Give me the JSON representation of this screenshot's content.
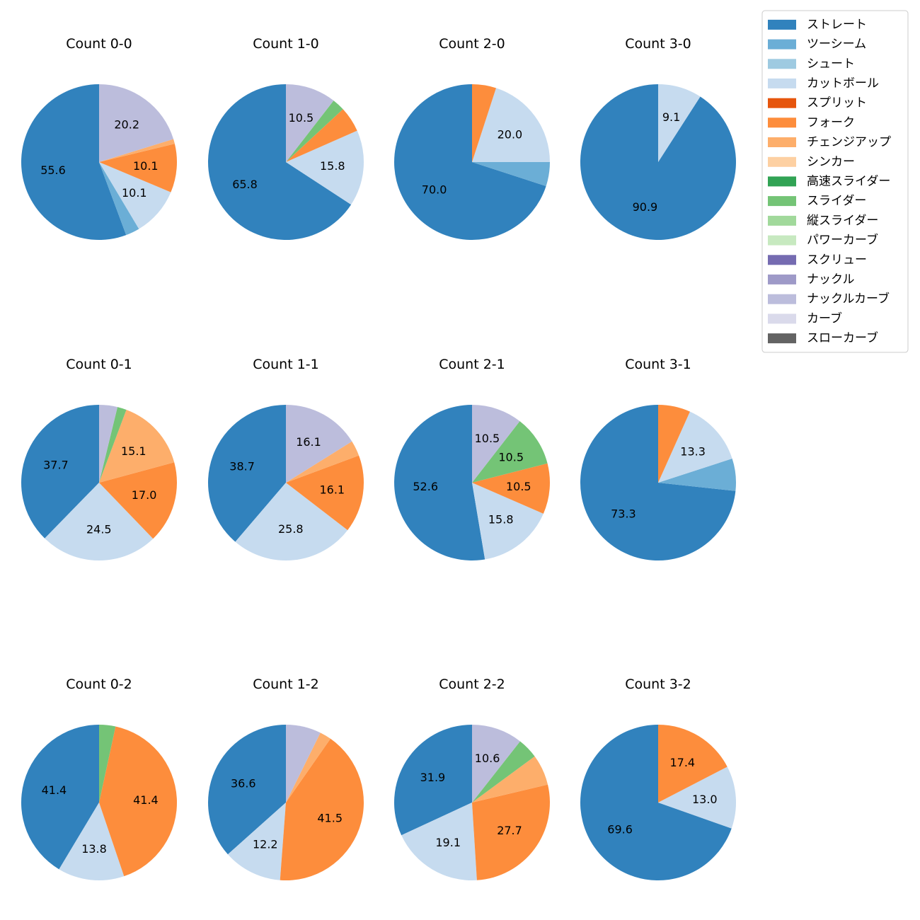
{
  "chart_data": {
    "type": "pie",
    "legend": {
      "placement": "top-right",
      "entries": [
        {
          "name": "ストレート",
          "color": "#3182bd"
        },
        {
          "name": "ツーシーム",
          "color": "#6baed6"
        },
        {
          "name": "シュート",
          "color": "#9ecae1"
        },
        {
          "name": "カットボール",
          "color": "#c6dbef"
        },
        {
          "name": "スプリット",
          "color": "#e6550d"
        },
        {
          "name": "フォーク",
          "color": "#fd8d3c"
        },
        {
          "name": "チェンジアップ",
          "color": "#fdae6b"
        },
        {
          "name": "シンカー",
          "color": "#fdd0a2"
        },
        {
          "name": "高速スライダー",
          "color": "#31a354"
        },
        {
          "name": "スライダー",
          "color": "#74c476"
        },
        {
          "name": "縦スライダー",
          "color": "#a1d99b"
        },
        {
          "name": "パワーカーブ",
          "color": "#c7e9c0"
        },
        {
          "name": "スクリュー",
          "color": "#756bb1"
        },
        {
          "name": "ナックル",
          "color": "#9e9ac8"
        },
        {
          "name": "ナックルカーブ",
          "color": "#bcbddc"
        },
        {
          "name": "カーブ",
          "color": "#dadaeb"
        },
        {
          "name": "スローカーブ",
          "color": "#636363"
        }
      ]
    },
    "pies": [
      {
        "title": "Count 0-0",
        "slices": [
          {
            "pitch": "ストレート",
            "value": 55.6,
            "label": "55.6"
          },
          {
            "pitch": "ツーシーム",
            "value": 2.9,
            "label": ""
          },
          {
            "pitch": "カットボール",
            "value": 10.1,
            "label": "10.1"
          },
          {
            "pitch": "フォーク",
            "value": 10.1,
            "label": "10.1"
          },
          {
            "pitch": "チェンジアップ",
            "value": 1.0,
            "label": ""
          },
          {
            "pitch": "ナックルカーブ",
            "value": 20.2,
            "label": "20.2"
          }
        ]
      },
      {
        "title": "Count 1-0",
        "slices": [
          {
            "pitch": "ストレート",
            "value": 65.8,
            "label": "65.8"
          },
          {
            "pitch": "カットボール",
            "value": 15.8,
            "label": "15.8"
          },
          {
            "pitch": "フォーク",
            "value": 5.3,
            "label": ""
          },
          {
            "pitch": "スライダー",
            "value": 2.6,
            "label": ""
          },
          {
            "pitch": "ナックルカーブ",
            "value": 10.5,
            "label": "10.5"
          }
        ]
      },
      {
        "title": "Count 2-0",
        "slices": [
          {
            "pitch": "ストレート",
            "value": 70.0,
            "label": "70.0"
          },
          {
            "pitch": "ツーシーム",
            "value": 5.0,
            "label": ""
          },
          {
            "pitch": "カットボール",
            "value": 20.0,
            "label": "20.0"
          },
          {
            "pitch": "フォーク",
            "value": 5.0,
            "label": ""
          }
        ]
      },
      {
        "title": "Count 3-0",
        "slices": [
          {
            "pitch": "ストレート",
            "value": 90.9,
            "label": "90.9"
          },
          {
            "pitch": "カットボール",
            "value": 9.1,
            "label": "9.1"
          }
        ]
      },
      {
        "title": "Count 0-1",
        "slices": [
          {
            "pitch": "ストレート",
            "value": 37.7,
            "label": "37.7"
          },
          {
            "pitch": "カットボール",
            "value": 24.5,
            "label": "24.5"
          },
          {
            "pitch": "フォーク",
            "value": 17.0,
            "label": "17.0"
          },
          {
            "pitch": "チェンジアップ",
            "value": 15.1,
            "label": "15.1"
          },
          {
            "pitch": "スライダー",
            "value": 1.9,
            "label": ""
          },
          {
            "pitch": "ナックルカーブ",
            "value": 3.8,
            "label": ""
          }
        ]
      },
      {
        "title": "Count 1-1",
        "slices": [
          {
            "pitch": "ストレート",
            "value": 38.7,
            "label": "38.7"
          },
          {
            "pitch": "カットボール",
            "value": 25.8,
            "label": "25.8"
          },
          {
            "pitch": "フォーク",
            "value": 16.1,
            "label": "16.1"
          },
          {
            "pitch": "チェンジアップ",
            "value": 3.2,
            "label": ""
          },
          {
            "pitch": "ナックルカーブ",
            "value": 16.1,
            "label": "16.1"
          }
        ]
      },
      {
        "title": "Count 2-1",
        "slices": [
          {
            "pitch": "ストレート",
            "value": 52.6,
            "label": "52.6"
          },
          {
            "pitch": "カットボール",
            "value": 15.8,
            "label": "15.8"
          },
          {
            "pitch": "フォーク",
            "value": 10.5,
            "label": "10.5"
          },
          {
            "pitch": "スライダー",
            "value": 10.5,
            "label": "10.5"
          },
          {
            "pitch": "ナックルカーブ",
            "value": 10.5,
            "label": "10.5"
          }
        ]
      },
      {
        "title": "Count 3-1",
        "slices": [
          {
            "pitch": "ストレート",
            "value": 73.3,
            "label": "73.3"
          },
          {
            "pitch": "ツーシーム",
            "value": 6.7,
            "label": ""
          },
          {
            "pitch": "カットボール",
            "value": 13.3,
            "label": "13.3"
          },
          {
            "pitch": "フォーク",
            "value": 6.7,
            "label": ""
          }
        ]
      },
      {
        "title": "Count 0-2",
        "slices": [
          {
            "pitch": "ストレート",
            "value": 41.4,
            "label": "41.4"
          },
          {
            "pitch": "カットボール",
            "value": 13.8,
            "label": "13.8"
          },
          {
            "pitch": "フォーク",
            "value": 41.4,
            "label": "41.4"
          },
          {
            "pitch": "スライダー",
            "value": 3.4,
            "label": ""
          }
        ]
      },
      {
        "title": "Count 1-2",
        "slices": [
          {
            "pitch": "ストレート",
            "value": 36.6,
            "label": "36.6"
          },
          {
            "pitch": "カットボール",
            "value": 12.2,
            "label": "12.2"
          },
          {
            "pitch": "フォーク",
            "value": 41.5,
            "label": "41.5"
          },
          {
            "pitch": "チェンジアップ",
            "value": 2.4,
            "label": ""
          },
          {
            "pitch": "ナックルカーブ",
            "value": 7.3,
            "label": ""
          }
        ]
      },
      {
        "title": "Count 2-2",
        "slices": [
          {
            "pitch": "ストレート",
            "value": 31.9,
            "label": "31.9"
          },
          {
            "pitch": "カットボール",
            "value": 19.1,
            "label": "19.1"
          },
          {
            "pitch": "フォーク",
            "value": 27.7,
            "label": "27.7"
          },
          {
            "pitch": "チェンジアップ",
            "value": 6.4,
            "label": ""
          },
          {
            "pitch": "スライダー",
            "value": 4.3,
            "label": ""
          },
          {
            "pitch": "ナックルカーブ",
            "value": 10.6,
            "label": "10.6"
          }
        ]
      },
      {
        "title": "Count 3-2",
        "slices": [
          {
            "pitch": "ストレート",
            "value": 69.6,
            "label": "69.6"
          },
          {
            "pitch": "カットボール",
            "value": 13.0,
            "label": "13.0"
          },
          {
            "pitch": "フォーク",
            "value": 17.4,
            "label": "17.4"
          }
        ]
      }
    ]
  }
}
